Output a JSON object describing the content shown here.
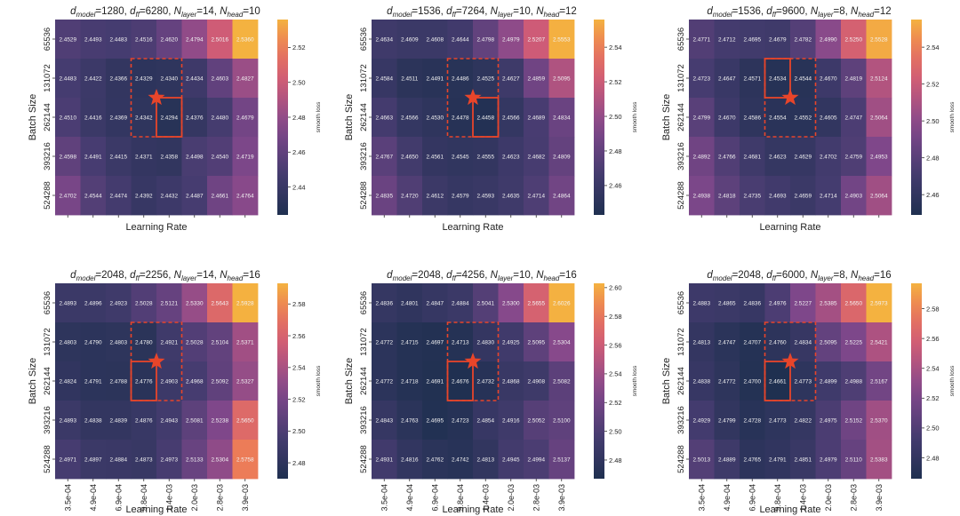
{
  "figure": {
    "x_tick_labels": [
      "3.5e-04",
      "4.9e-04",
      "6.9e-04",
      "9.8e-04",
      "1.4e-03",
      "2.0e-03",
      "2.8e-03",
      "3.9e-03"
    ],
    "y_tick_labels": [
      "65536",
      "131072",
      "262144",
      "393216",
      "524288"
    ],
    "xlabel": "Learning Rate",
    "ylabel": "Batch Size",
    "colorbar_label": "smooth loss",
    "colors": {
      "low": "#1f3050",
      "mid": "#8a4a92",
      "high": "#f2b040",
      "highlight": "#e8452a"
    }
  },
  "chart_data": [
    {
      "type": "heatmap",
      "title": {
        "d_model": "1280",
        "d_ff": "6280",
        "N_layer": "14",
        "N_head": "10"
      },
      "xlabel": "Learning Rate",
      "ylabel": "Batch Size",
      "x": [
        "3.5e-04",
        "4.9e-04",
        "6.9e-04",
        "9.8e-04",
        "1.4e-03",
        "2.0e-03",
        "2.8e-03",
        "3.9e-03"
      ],
      "y": [
        "65536",
        "131072",
        "262144",
        "393216",
        "524288"
      ],
      "values": [
        [
          "2.4529",
          "2.4493",
          "2.4483",
          "2.4516",
          "2.4620",
          "2.4794",
          "2.5016",
          "2.5360"
        ],
        [
          "2.4483",
          "2.4422",
          "2.4366",
          "2.4329",
          "2.4340",
          "2.4434",
          "2.4603",
          "2.4827"
        ],
        [
          "2.4510",
          "2.4416",
          "2.4369",
          "2.4342",
          "2.4294",
          "2.4376",
          "2.4480",
          "2.4679"
        ],
        [
          "2.4598",
          "2.4491",
          "2.4415",
          "2.4371",
          "2.4358",
          "2.4498",
          "2.4540",
          "2.4719"
        ],
        [
          "2.4702",
          "2.4544",
          "2.4474",
          "2.4392",
          "2.4432",
          "2.4487",
          "2.4661",
          "2.4764"
        ]
      ],
      "min_cell": [
        2,
        4
      ],
      "dashed_box": {
        "rows": [
          1,
          2
        ],
        "cols": [
          3,
          4
        ]
      },
      "star": {
        "x": "1.2e-03",
        "y": "196608"
      },
      "colorbar": {
        "min": 2.424,
        "max": 2.536,
        "ticks": [
          "2.44",
          "2.46",
          "2.48",
          "2.50",
          "2.52"
        ]
      }
    },
    {
      "type": "heatmap",
      "title": {
        "d_model": "1536",
        "d_ff": "7264",
        "N_layer": "10",
        "N_head": "12"
      },
      "xlabel": "Learning Rate",
      "ylabel": "Batch Size",
      "x": [
        "3.5e-04",
        "4.9e-04",
        "6.9e-04",
        "9.8e-04",
        "1.4e-03",
        "2.0e-03",
        "2.8e-03",
        "3.9e-03"
      ],
      "y": [
        "65536",
        "131072",
        "262144",
        "393216",
        "524288"
      ],
      "values": [
        [
          "2.4634",
          "2.4609",
          "2.4608",
          "2.4644",
          "2.4798",
          "2.4979",
          "2.5207",
          "2.5553"
        ],
        [
          "2.4584",
          "2.4511",
          "2.4491",
          "2.4486",
          "2.4525",
          "2.4627",
          "2.4859",
          "2.5095"
        ],
        [
          "2.4663",
          "2.4566",
          "2.4530",
          "2.4478",
          "2.4458",
          "2.4566",
          "2.4689",
          "2.4834"
        ],
        [
          "2.4767",
          "2.4650",
          "2.4561",
          "2.4545",
          "2.4555",
          "2.4623",
          "2.4682",
          "2.4809"
        ],
        [
          "2.4835",
          "2.4720",
          "2.4612",
          "2.4579",
          "2.4593",
          "2.4635",
          "2.4714",
          "2.4864"
        ]
      ],
      "min_cell": [
        2,
        4
      ],
      "dashed_box": {
        "rows": [
          1,
          2
        ],
        "cols": [
          3,
          4
        ]
      },
      "star": {
        "x": "1.2e-03",
        "y": "196608"
      },
      "colorbar": {
        "min": 2.443,
        "max": 2.556,
        "ticks": [
          "2.46",
          "2.48",
          "2.50",
          "2.52",
          "2.54"
        ]
      }
    },
    {
      "type": "heatmap",
      "title": {
        "d_model": "1536",
        "d_ff": "9600",
        "N_layer": "8",
        "N_head": "12"
      },
      "xlabel": "Learning Rate",
      "ylabel": "Batch Size",
      "x": [
        "3.5e-04",
        "4.9e-04",
        "6.9e-04",
        "9.8e-04",
        "1.4e-03",
        "2.0e-03",
        "2.8e-03",
        "3.9e-03"
      ],
      "y": [
        "65536",
        "131072",
        "262144",
        "393216",
        "524288"
      ],
      "values": [
        [
          "2.4771",
          "2.4712",
          "2.4695",
          "2.4679",
          "2.4782",
          "2.4990",
          "2.5250",
          "2.5528"
        ],
        [
          "2.4723",
          "2.4647",
          "2.4571",
          "2.4534",
          "2.4544",
          "2.4670",
          "2.4819",
          "2.5124"
        ],
        [
          "2.4799",
          "2.4670",
          "2.4586",
          "2.4554",
          "2.4552",
          "2.4605",
          "2.4747",
          "2.5064"
        ],
        [
          "2.4892",
          "2.4766",
          "2.4681",
          "2.4623",
          "2.4629",
          "2.4702",
          "2.4759",
          "2.4953"
        ],
        [
          "2.4938",
          "2.4818",
          "2.4735",
          "2.4693",
          "2.4659",
          "2.4714",
          "2.4903",
          "2.5064"
        ]
      ],
      "min_cell": [
        1,
        3
      ],
      "dashed_box": {
        "rows": [
          1,
          2
        ],
        "cols": [
          3,
          4
        ]
      },
      "star": {
        "x": "1.2e-03",
        "y": "196608"
      },
      "colorbar": {
        "min": 2.449,
        "max": 2.555,
        "ticks": [
          "2.46",
          "2.48",
          "2.50",
          "2.52",
          "2.54"
        ]
      }
    },
    {
      "type": "heatmap",
      "title": {
        "d_model": "2048",
        "d_ff": "2256",
        "N_layer": "14",
        "N_head": "16"
      },
      "xlabel": "Learning Rate",
      "ylabel": "Batch Size",
      "x": [
        "3.5e-04",
        "4.9e-04",
        "6.9e-04",
        "9.8e-04",
        "1.4e-03",
        "2.0e-03",
        "2.8e-03",
        "3.9e-03"
      ],
      "y": [
        "65536",
        "131072",
        "262144",
        "393216",
        "524288"
      ],
      "values": [
        [
          "2.4893",
          "2.4896",
          "2.4923",
          "2.5028",
          "2.5121",
          "2.5330",
          "2.5643",
          "2.5928"
        ],
        [
          "2.4803",
          "2.4790",
          "2.4803",
          "2.4780",
          "2.4921",
          "2.5028",
          "2.5104",
          "2.5371"
        ],
        [
          "2.4824",
          "2.4791",
          "2.4788",
          "2.4776",
          "2.4903",
          "2.4968",
          "2.5092",
          "2.5327"
        ],
        [
          "2.4893",
          "2.4838",
          "2.4839",
          "2.4876",
          "2.4943",
          "2.5081",
          "2.5238",
          "2.5650"
        ],
        [
          "2.4971",
          "2.4897",
          "2.4884",
          "2.4873",
          "2.4973",
          "2.5133",
          "2.5304",
          "2.5758"
        ]
      ],
      "min_cell": [
        2,
        3
      ],
      "dashed_box": {
        "rows": [
          1,
          2
        ],
        "cols": [
          3,
          4
        ]
      },
      "star": {
        "x": "1.2e-03",
        "y": "196608"
      },
      "colorbar": {
        "min": 2.47,
        "max": 2.593,
        "ticks": [
          "2.48",
          "2.50",
          "2.52",
          "2.54",
          "2.56",
          "2.58"
        ]
      }
    },
    {
      "type": "heatmap",
      "title": {
        "d_model": "2048",
        "d_ff": "4256",
        "N_layer": "10",
        "N_head": "16"
      },
      "xlabel": "Learning Rate",
      "ylabel": "Batch Size",
      "x": [
        "3.5e-04",
        "4.9e-04",
        "6.9e-04",
        "9.8e-04",
        "1.4e-03",
        "2.0e-03",
        "2.8e-03",
        "3.9e-03"
      ],
      "y": [
        "65536",
        "131072",
        "262144",
        "393216",
        "524288"
      ],
      "values": [
        [
          "2.4836",
          "2.4801",
          "2.4847",
          "2.4884",
          "2.5041",
          "2.5300",
          "2.5655",
          "2.6026"
        ],
        [
          "2.4772",
          "2.4715",
          "2.4697",
          "2.4713",
          "2.4830",
          "2.4925",
          "2.5095",
          "2.5304"
        ],
        [
          "2.4772",
          "2.4718",
          "2.4691",
          "2.4676",
          "2.4732",
          "2.4868",
          "2.4908",
          "2.5082"
        ],
        [
          "2.4843",
          "2.4763",
          "2.4695",
          "2.4723",
          "2.4854",
          "2.4916",
          "2.5052",
          "2.5100"
        ],
        [
          "2.4931",
          "2.4816",
          "2.4762",
          "2.4742",
          "2.4813",
          "2.4945",
          "2.4994",
          "2.5137"
        ]
      ],
      "min_cell": [
        2,
        3
      ],
      "dashed_box": {
        "rows": [
          1,
          2
        ],
        "cols": [
          3,
          4
        ]
      },
      "star": {
        "x": "1.2e-03",
        "y": "196608"
      },
      "colorbar": {
        "min": 2.467,
        "max": 2.603,
        "ticks": [
          "2.48",
          "2.50",
          "2.52",
          "2.54",
          "2.56",
          "2.58",
          "2.60"
        ]
      }
    },
    {
      "type": "heatmap",
      "title": {
        "d_model": "2048",
        "d_ff": "6000",
        "N_layer": "8",
        "N_head": "16"
      },
      "xlabel": "Learning Rate",
      "ylabel": "Batch Size",
      "x": [
        "3.5e-04",
        "4.9e-04",
        "6.9e-04",
        "9.8e-04",
        "1.4e-03",
        "2.0e-03",
        "2.8e-03",
        "3.9e-03"
      ],
      "y": [
        "65536",
        "131072",
        "262144",
        "393216",
        "524288"
      ],
      "values": [
        [
          "2.4883",
          "2.4865",
          "2.4836",
          "2.4976",
          "2.5227",
          "2.5385",
          "2.5650",
          "2.5973"
        ],
        [
          "2.4813",
          "2.4747",
          "2.4707",
          "2.4760",
          "2.4834",
          "2.5095",
          "2.5225",
          "2.5421"
        ],
        [
          "2.4838",
          "2.4772",
          "2.4700",
          "2.4661",
          "2.4773",
          "2.4899",
          "2.4988",
          "2.5167"
        ],
        [
          "2.4929",
          "2.4799",
          "2.4728",
          "2.4773",
          "2.4822",
          "2.4975",
          "2.5152",
          "2.5370"
        ],
        [
          "2.5013",
          "2.4889",
          "2.4765",
          "2.4791",
          "2.4851",
          "2.4979",
          "2.5110",
          "2.5383"
        ]
      ],
      "min_cell": [
        2,
        3
      ],
      "dashed_box": {
        "rows": [
          1,
          2
        ],
        "cols": [
          3,
          4
        ]
      },
      "star": {
        "x": "1.2e-03",
        "y": "196608"
      },
      "colorbar": {
        "min": 2.466,
        "max": 2.597,
        "ticks": [
          "2.48",
          "2.50",
          "2.52",
          "2.54",
          "2.56",
          "2.58"
        ]
      }
    }
  ]
}
